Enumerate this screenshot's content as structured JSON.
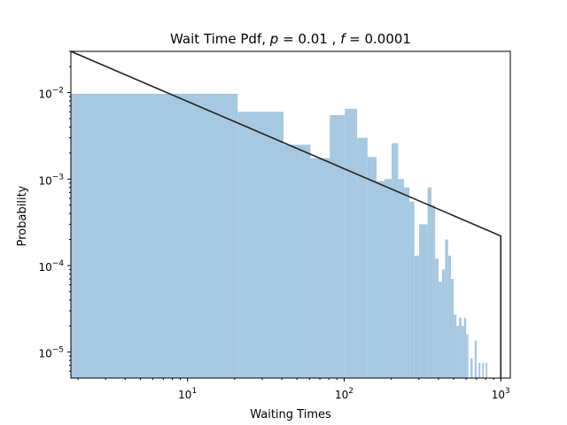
{
  "chart_data": {
    "type": "histogram",
    "title_prefix": "Wait Time Pdf, ",
    "title_p_symbol": "p",
    "title_p_value": " = 0.01 , ",
    "title_f_symbol": "f",
    "title_f_value": " = 0.0001",
    "xlabel": "Waiting Times",
    "ylabel": "Probability",
    "x_scale": "log",
    "y_scale": "log",
    "xlim": [
      1.8,
      1150
    ],
    "ylim": [
      5e-06,
      0.03
    ],
    "x_ticks": [
      {
        "value": 10,
        "base": "10",
        "exp": "1"
      },
      {
        "value": 100,
        "base": "10",
        "exp": "2"
      },
      {
        "value": 1000,
        "base": "10",
        "exp": "3"
      }
    ],
    "y_ticks": [
      {
        "value": 1e-05,
        "base": "10",
        "exp": "−5"
      },
      {
        "value": 0.0001,
        "base": "10",
        "exp": "−4"
      },
      {
        "value": 0.001,
        "base": "10",
        "exp": "−3"
      },
      {
        "value": 0.01,
        "base": "10",
        "exp": "−2"
      }
    ],
    "histogram_color": "#a6c8e0",
    "line_color": "#222222",
    "histogram_bins": [
      {
        "x0": 1.0,
        "x1": 20.9,
        "y": 0.0097
      },
      {
        "x0": 20.9,
        "x1": 41.0,
        "y": 0.006
      },
      {
        "x0": 41.0,
        "x1": 61.0,
        "y": 0.0025
      },
      {
        "x0": 61.0,
        "x1": 81.0,
        "y": 0.00175
      },
      {
        "x0": 81.0,
        "x1": 101.0,
        "y": 0.0055
      },
      {
        "x0": 101.0,
        "x1": 121.0,
        "y": 0.0065
      },
      {
        "x0": 121.0,
        "x1": 141.0,
        "y": 0.003
      },
      {
        "x0": 141.0,
        "x1": 161.0,
        "y": 0.0018
      },
      {
        "x0": 161.0,
        "x1": 181.0,
        "y": 0.00095
      },
      {
        "x0": 181.0,
        "x1": 201.0,
        "y": 0.001
      },
      {
        "x0": 201.0,
        "x1": 221.0,
        "y": 0.0026
      },
      {
        "x0": 221.0,
        "x1": 241.0,
        "y": 0.001
      },
      {
        "x0": 241.0,
        "x1": 261.0,
        "y": 0.0008
      },
      {
        "x0": 261.0,
        "x1": 281.0,
        "y": 0.00055
      },
      {
        "x0": 281.0,
        "x1": 301.0,
        "y": 0.00013
      },
      {
        "x0": 301.0,
        "x1": 321.0,
        "y": 0.0003
      },
      {
        "x0": 321.0,
        "x1": 341.0,
        "y": 0.0003
      },
      {
        "x0": 341.0,
        "x1": 361.0,
        "y": 0.0008
      },
      {
        "x0": 361.0,
        "x1": 381.0,
        "y": 0.0005
      },
      {
        "x0": 381.0,
        "x1": 401.0,
        "y": 0.00012
      },
      {
        "x0": 401.0,
        "x1": 421.0,
        "y": 6.5e-05
      },
      {
        "x0": 421.0,
        "x1": 441.0,
        "y": 9e-05
      },
      {
        "x0": 441.0,
        "x1": 461.0,
        "y": 0.0002
      },
      {
        "x0": 461.0,
        "x1": 481.0,
        "y": 0.00013
      },
      {
        "x0": 481.0,
        "x1": 501.0,
        "y": 7e-05
      },
      {
        "x0": 501.0,
        "x1": 521.0,
        "y": 2.7e-05
      },
      {
        "x0": 521.0,
        "x1": 541.0,
        "y": 2e-05
      },
      {
        "x0": 541.0,
        "x1": 561.0,
        "y": 2.5e-05
      },
      {
        "x0": 561.0,
        "x1": 581.0,
        "y": 2e-05
      },
      {
        "x0": 581.0,
        "x1": 601.0,
        "y": 2.5e-05
      },
      {
        "x0": 601.0,
        "x1": 621.0,
        "y": 1.6e-05
      },
      {
        "x0": 641.0,
        "x1": 661.0,
        "y": 8.5e-06
      },
      {
        "x0": 681.0,
        "x1": 701.0,
        "y": 1.35e-05
      },
      {
        "x0": 721.0,
        "x1": 741.0,
        "y": 7.5e-06
      },
      {
        "x0": 761.0,
        "x1": 781.0,
        "y": 7.5e-06
      },
      {
        "x0": 801.0,
        "x1": 821.0,
        "y": 7.5e-06
      }
    ],
    "line": {
      "points": [
        {
          "x": 1.8,
          "y": 0.03
        },
        {
          "x": 1000,
          "y": 0.00022
        },
        {
          "x": 1000,
          "y": 5e-06
        }
      ]
    }
  }
}
